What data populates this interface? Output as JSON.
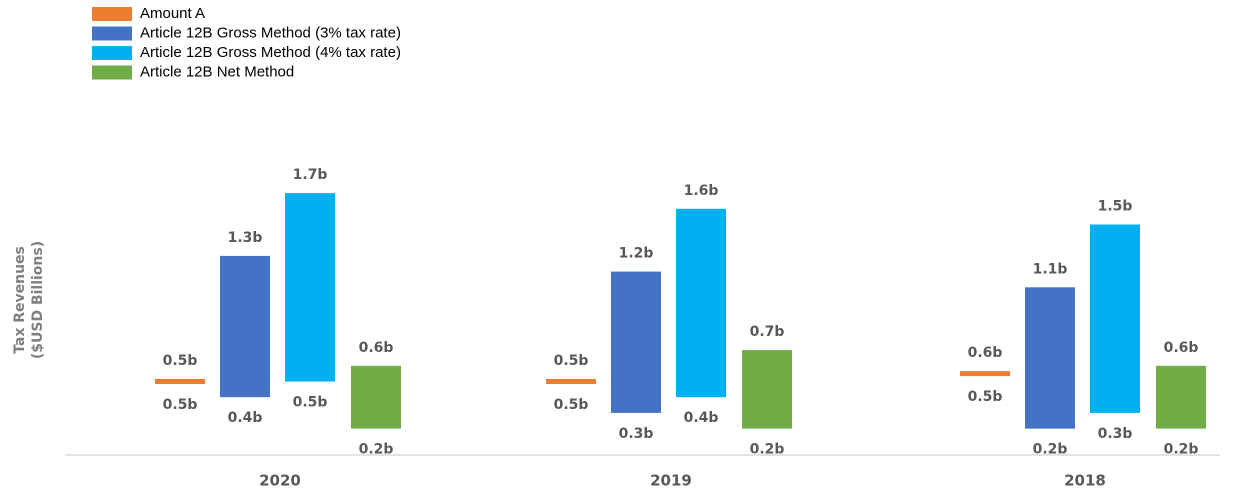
{
  "chart_data": {
    "type": "floating-bar",
    "ylabel": [
      "Tax Revenues",
      "($USD Billions)"
    ],
    "categories": [
      "2020",
      "2019",
      "2018"
    ],
    "ylim": [
      0,
      2
    ],
    "series": [
      {
        "name": "Amount A",
        "color": "#ed7d31",
        "values": [
          [
            0.5,
            0.5
          ],
          [
            0.5,
            0.5
          ],
          [
            0.54,
            0.56
          ]
        ],
        "value_labels": [
          [
            "0.5b",
            "0.5b"
          ],
          [
            "0.5b",
            "0.5b"
          ],
          [
            "0.5b",
            "0.6b"
          ]
        ]
      },
      {
        "name": "Article 12B Gross Method (3% tax rate)",
        "color": "#4472c4",
        "values": [
          [
            0.4,
            1.3
          ],
          [
            0.3,
            1.2
          ],
          [
            0.2,
            1.1
          ]
        ],
        "value_labels": [
          [
            "0.4b",
            "1.3b"
          ],
          [
            "0.3b",
            "1.2b"
          ],
          [
            "0.2b",
            "1.1b"
          ]
        ]
      },
      {
        "name": "Article 12B Gross Method (4% tax rate)",
        "color": "#00b0f0",
        "values": [
          [
            0.5,
            1.7
          ],
          [
            0.4,
            1.6
          ],
          [
            0.3,
            1.5
          ]
        ],
        "value_labels": [
          [
            "0.5b",
            "1.7b"
          ],
          [
            "0.4b",
            "1.6b"
          ],
          [
            "0.3b",
            "1.5b"
          ]
        ]
      },
      {
        "name": "Article 12B Net Method",
        "color": "#70ad47",
        "values": [
          [
            0.2,
            0.6
          ],
          [
            0.2,
            0.7
          ],
          [
            0.2,
            0.6
          ]
        ],
        "value_labels": [
          [
            "0.2b",
            "0.6b"
          ],
          [
            "0.2b",
            "0.7b"
          ],
          [
            "0.2b",
            "0.6b"
          ]
        ]
      }
    ]
  }
}
